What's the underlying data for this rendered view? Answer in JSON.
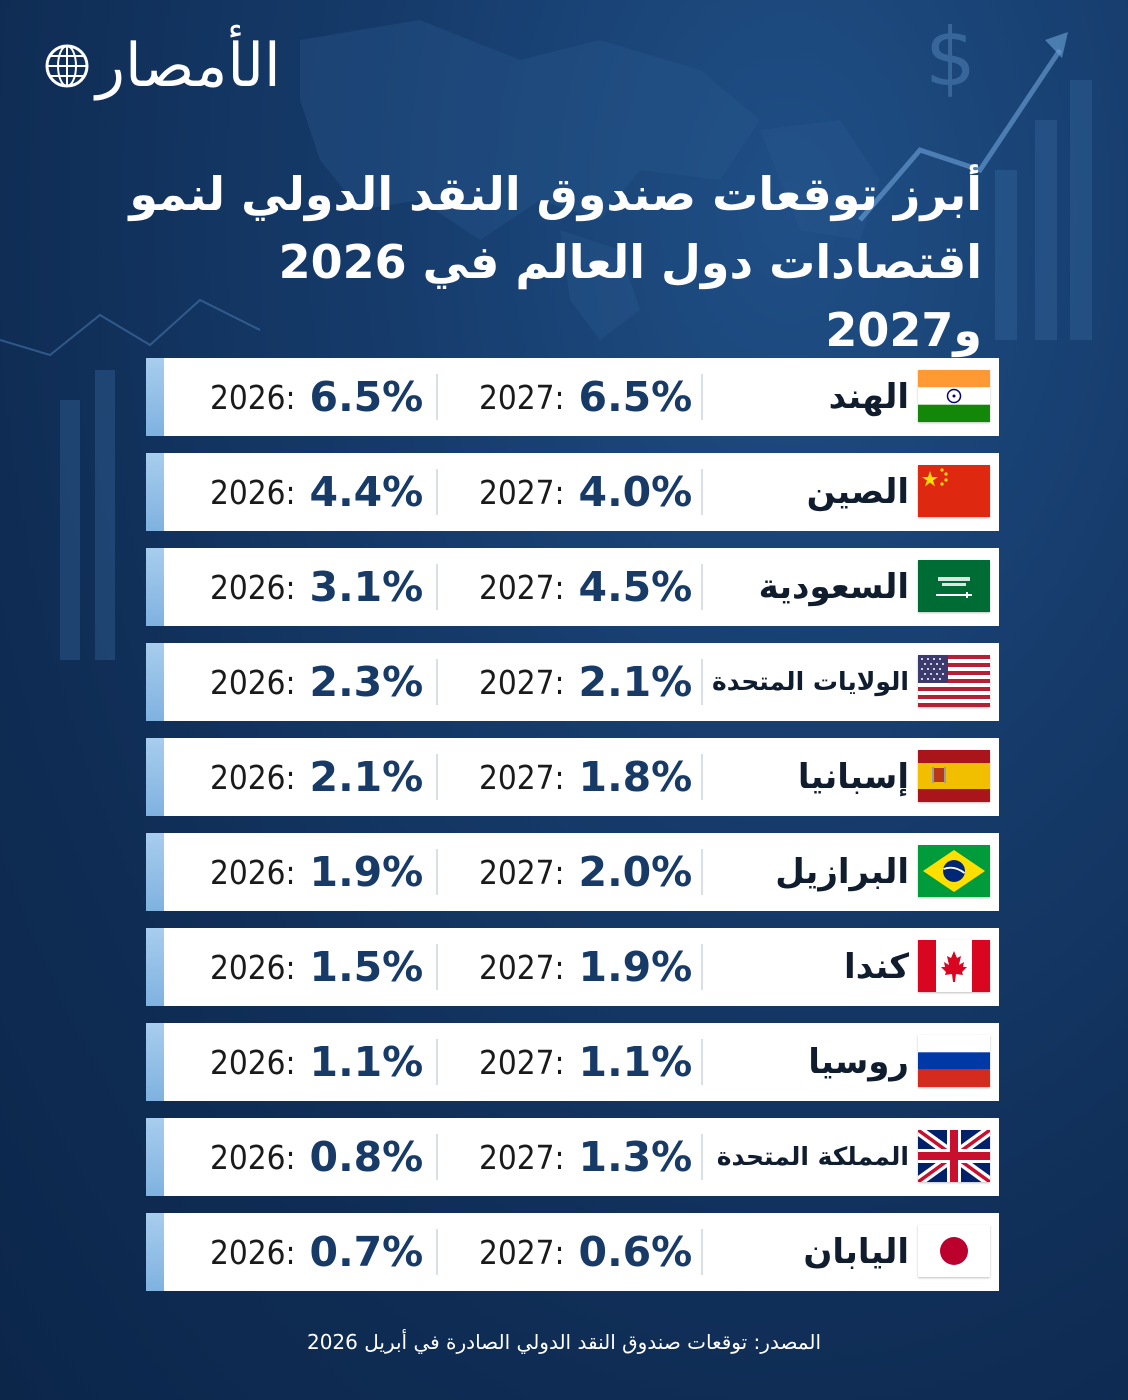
{
  "brand": {
    "logo_text": "الأمصار"
  },
  "title": {
    "line1": "أبرز توقعات صندوق النقد الدولي لنمو",
    "line2": "اقتصادات دول العالم في 2026 و2027"
  },
  "year_labels": {
    "y2027": "2027:",
    "y2026": "2026:"
  },
  "rows": [
    {
      "country": "الهند",
      "flag": "india-flag-icon",
      "v2027": "6.5%",
      "v2026": "6.5%"
    },
    {
      "country": "الصين",
      "flag": "china-flag-icon",
      "v2027": "4.0%",
      "v2026": "4.4%"
    },
    {
      "country": "السعودية",
      "flag": "saudi-flag-icon",
      "v2027": "4.5%",
      "v2026": "3.1%"
    },
    {
      "country": "الولايات المتحدة",
      "flag": "usa-flag-icon",
      "v2027": "2.1%",
      "v2026": "2.3%"
    },
    {
      "country": "إسبانيا",
      "flag": "spain-flag-icon",
      "v2027": "1.8%",
      "v2026": "2.1%"
    },
    {
      "country": "البرازيل",
      "flag": "brazil-flag-icon",
      "v2027": "2.0%",
      "v2026": "1.9%"
    },
    {
      "country": "كندا",
      "flag": "canada-flag-icon",
      "v2027": "1.9%",
      "v2026": "1.5%"
    },
    {
      "country": "روسيا",
      "flag": "russia-flag-icon",
      "v2027": "1.1%",
      "v2026": "1.1%"
    },
    {
      "country": "المملكة المتحدة",
      "flag": "uk-flag-icon",
      "v2027": "1.3%",
      "v2026": "0.8%"
    },
    {
      "country": "اليابان",
      "flag": "japan-flag-icon",
      "v2027": "0.6%",
      "v2026": "0.7%"
    }
  ],
  "source": "المصدر: توقعات صندوق النقد الدولي الصادرة في أبريل 2026",
  "colors": {
    "accent": "#8fbde6",
    "value": "#173a66",
    "background": "#143a68"
  }
}
